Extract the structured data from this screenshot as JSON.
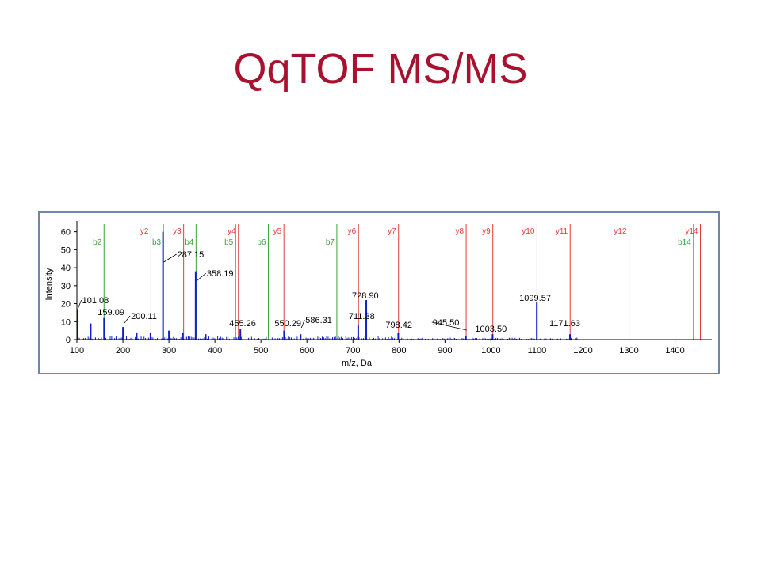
{
  "slide": {
    "title": "QqTOF MS/MS"
  },
  "colors": {
    "title": "#a8122e",
    "spectrum": "#1020c8",
    "b_ion": "#3aa33a",
    "y_ion": "#e03c3c",
    "panel_border": "#6f86a6"
  },
  "chart_data": {
    "type": "bar",
    "xlabel": "m/z, Da",
    "ylabel": "Intensity",
    "xlim": [
      100,
      1480
    ],
    "ylim": [
      0,
      66
    ],
    "x_ticks": [
      100,
      200,
      300,
      400,
      500,
      600,
      700,
      800,
      900,
      1000,
      1100,
      1200,
      1300,
      1400
    ],
    "y_ticks": [
      0,
      10,
      20,
      30,
      40,
      50,
      60
    ],
    "grid": false,
    "peaks": [
      {
        "mz": 101.08,
        "intensity": 17
      },
      {
        "mz": 130,
        "intensity": 9
      },
      {
        "mz": 159.09,
        "intensity": 12
      },
      {
        "mz": 200.11,
        "intensity": 7
      },
      {
        "mz": 230,
        "intensity": 4
      },
      {
        "mz": 260,
        "intensity": 4
      },
      {
        "mz": 287.15,
        "intensity": 60
      },
      {
        "mz": 300,
        "intensity": 5
      },
      {
        "mz": 330,
        "intensity": 4
      },
      {
        "mz": 358.19,
        "intensity": 38
      },
      {
        "mz": 380,
        "intensity": 3
      },
      {
        "mz": 455.26,
        "intensity": 6
      },
      {
        "mz": 550.29,
        "intensity": 5
      },
      {
        "mz": 586.31,
        "intensity": 3
      },
      {
        "mz": 711.38,
        "intensity": 8
      },
      {
        "mz": 728.9,
        "intensity": 22
      },
      {
        "mz": 798.42,
        "intensity": 4
      },
      {
        "mz": 945.5,
        "intensity": 2
      },
      {
        "mz": 1003.5,
        "intensity": 3
      },
      {
        "mz": 1099.57,
        "intensity": 21
      },
      {
        "mz": 1171.63,
        "intensity": 3
      }
    ],
    "peak_labels": [
      {
        "text": "101.08",
        "mz": 101.08
      },
      {
        "text": "159.09",
        "mz": 159.09
      },
      {
        "text": "200.11",
        "mz": 200.11
      },
      {
        "text": "287.15",
        "mz": 287.15
      },
      {
        "text": "358.19",
        "mz": 358.19
      },
      {
        "text": "455.26",
        "mz": 455.26
      },
      {
        "text": "550.29",
        "mz": 550.29
      },
      {
        "text": "586.31",
        "mz": 586.31
      },
      {
        "text": "711.38",
        "mz": 711.38
      },
      {
        "text": "728.90",
        "mz": 728.9
      },
      {
        "text": "798.42",
        "mz": 798.42
      },
      {
        "text": "945.50",
        "mz": 945.5
      },
      {
        "text": "1003.50",
        "mz": 1003.5
      },
      {
        "text": "1099.57",
        "mz": 1099.57
      },
      {
        "text": "1171.63",
        "mz": 1171.63
      }
    ],
    "b_ions": [
      {
        "name": "b2",
        "mz": 159
      },
      {
        "name": "b3",
        "mz": 288
      },
      {
        "name": "b4",
        "mz": 359
      },
      {
        "name": "b5",
        "mz": 445
      },
      {
        "name": "b6",
        "mz": 516
      },
      {
        "name": "b7",
        "mz": 665
      },
      {
        "name": "b14",
        "mz": 1440
      }
    ],
    "y_ions": [
      {
        "name": "y2",
        "mz": 261
      },
      {
        "name": "y3",
        "mz": 332
      },
      {
        "name": "y4",
        "mz": 451
      },
      {
        "name": "y5",
        "mz": 550
      },
      {
        "name": "y6",
        "mz": 712
      },
      {
        "name": "y7",
        "mz": 799
      },
      {
        "name": "y8",
        "mz": 946
      },
      {
        "name": "y9",
        "mz": 1004
      },
      {
        "name": "y10",
        "mz": 1100
      },
      {
        "name": "y11",
        "mz": 1172
      },
      {
        "name": "y12",
        "mz": 1300
      },
      {
        "name": "y14",
        "mz": 1455
      }
    ]
  }
}
